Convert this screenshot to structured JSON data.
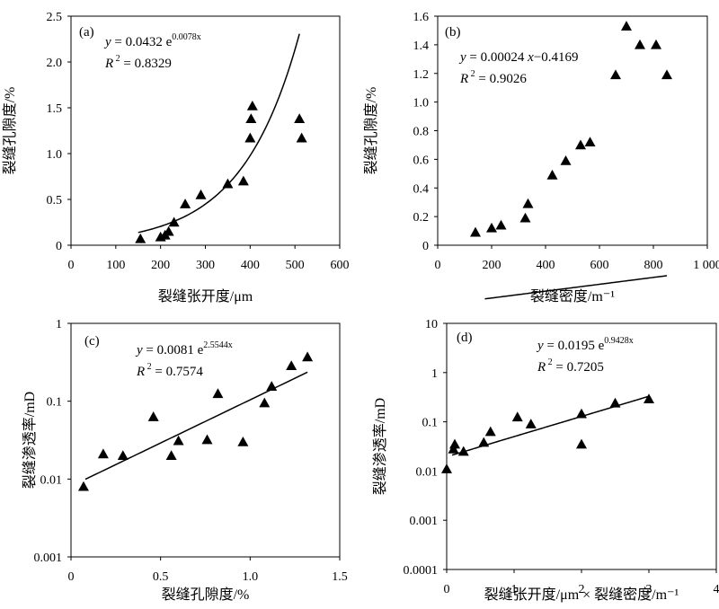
{
  "chart_data": [
    {
      "id": "a",
      "type": "scatter",
      "panel_label": "(a)",
      "xlabel": "裂缝张开度/μm",
      "ylabel": "裂缝孔隙度/%",
      "xlim": [
        0,
        600
      ],
      "ylim": [
        0,
        2.5
      ],
      "x_ticks": [
        "0",
        "100",
        "200",
        "300",
        "400",
        "500",
        "600"
      ],
      "y_ticks": [
        "0",
        "0.5",
        "1.0",
        "1.5",
        "2.0",
        "2.5"
      ],
      "y_scale": "linear",
      "points": [
        {
          "x": 155,
          "y": 0.07
        },
        {
          "x": 200,
          "y": 0.09
        },
        {
          "x": 210,
          "y": 0.11
        },
        {
          "x": 218,
          "y": 0.15
        },
        {
          "x": 230,
          "y": 0.25
        },
        {
          "x": 255,
          "y": 0.45
        },
        {
          "x": 290,
          "y": 0.55
        },
        {
          "x": 350,
          "y": 0.67
        },
        {
          "x": 385,
          "y": 0.7
        },
        {
          "x": 400,
          "y": 1.17
        },
        {
          "x": 402,
          "y": 1.38
        },
        {
          "x": 405,
          "y": 1.52
        },
        {
          "x": 510,
          "y": 1.38
        },
        {
          "x": 515,
          "y": 1.17
        }
      ],
      "fit": {
        "kind": "exp",
        "a": 0.0432,
        "b": 0.0078,
        "x_range": [
          150,
          510
        ]
      },
      "equation": {
        "y": "y",
        "eq": " = 0.0432 e",
        "exp": "0.0078x",
        "r2_R": "R",
        "r2_sup": "2",
        "r2_val": " = 0.8329"
      }
    },
    {
      "id": "b",
      "type": "scatter",
      "panel_label": "(b)",
      "xlabel": "裂缝密度/m⁻¹",
      "ylabel": "裂缝孔隙度/%",
      "xlim": [
        0,
        1000
      ],
      "ylim": [
        0,
        1.6
      ],
      "x_ticks": [
        "0",
        "200",
        "400",
        "600",
        "800",
        "1 000"
      ],
      "y_ticks": [
        "0",
        "0.2",
        "0.4",
        "0.6",
        "0.8",
        "1.0",
        "1.2",
        "1.4",
        "1.6"
      ],
      "y_scale": "linear",
      "points": [
        {
          "x": 140,
          "y": 0.09
        },
        {
          "x": 200,
          "y": 0.12
        },
        {
          "x": 235,
          "y": 0.14
        },
        {
          "x": 325,
          "y": 0.19
        },
        {
          "x": 335,
          "y": 0.29
        },
        {
          "x": 425,
          "y": 0.49
        },
        {
          "x": 475,
          "y": 0.59
        },
        {
          "x": 530,
          "y": 0.7
        },
        {
          "x": 565,
          "y": 0.72
        },
        {
          "x": 660,
          "y": 1.19
        },
        {
          "x": 700,
          "y": 1.53
        },
        {
          "x": 750,
          "y": 1.4
        },
        {
          "x": 810,
          "y": 1.4
        },
        {
          "x": 850,
          "y": 1.19
        }
      ],
      "fit": {
        "kind": "linear",
        "a": 0.00024,
        "b": -0.4169,
        "x_range": [
          175,
          850
        ]
      },
      "equation": {
        "y": "y",
        "eq": " = 0.00024 ",
        "x": "x",
        "eq2": "−0.4169",
        "r2_R": "R",
        "r2_sup": "2",
        "r2_val": " = 0.9026"
      }
    },
    {
      "id": "c",
      "type": "scatter",
      "panel_label": "(c)",
      "xlabel": "裂缝孔隙度/%",
      "ylabel": "裂缝渗透率/mD",
      "xlim": [
        0,
        1.5
      ],
      "ylim": [
        0.001,
        1
      ],
      "x_ticks": [
        "0",
        "0.5",
        "1.0",
        "1.5"
      ],
      "y_ticks": [
        "0.001",
        "0.01",
        "0.1",
        "1"
      ],
      "y_scale": "log",
      "points": [
        {
          "x": 0.07,
          "y": 0.008
        },
        {
          "x": 0.18,
          "y": 0.021
        },
        {
          "x": 0.29,
          "y": 0.02
        },
        {
          "x": 0.46,
          "y": 0.063
        },
        {
          "x": 0.56,
          "y": 0.02
        },
        {
          "x": 0.6,
          "y": 0.031
        },
        {
          "x": 0.76,
          "y": 0.032
        },
        {
          "x": 0.82,
          "y": 0.125
        },
        {
          "x": 0.96,
          "y": 0.03
        },
        {
          "x": 1.08,
          "y": 0.095
        },
        {
          "x": 1.12,
          "y": 0.155
        },
        {
          "x": 1.23,
          "y": 0.285
        },
        {
          "x": 1.32,
          "y": 0.37
        }
      ],
      "fit": {
        "kind": "exp",
        "a": 0.0081,
        "b": 2.5544,
        "x_range": [
          0.08,
          1.32
        ]
      },
      "equation": {
        "y": "y",
        "eq": " = 0.0081 e",
        "exp": "2.5544x",
        "r2_R": "R",
        "r2_sup": "2",
        "r2_val": " = 0.7574"
      }
    },
    {
      "id": "d",
      "type": "scatter",
      "panel_label": "(d)",
      "xlabel": "裂缝张开度/μm × 裂缝密度/m⁻¹",
      "ylabel": "裂缝渗透率/mD",
      "xlim": [
        0,
        4
      ],
      "ylim": [
        0.0001,
        10
      ],
      "x_ticks": [
        "0",
        "1",
        "2",
        "3",
        "4"
      ],
      "y_ticks": [
        "0.0001",
        "0.001",
        "0.01",
        "0.1",
        "1",
        "10"
      ],
      "y_scale": "log",
      "points": [
        {
          "x": 0.0,
          "y": 0.011
        },
        {
          "x": 0.1,
          "y": 0.028
        },
        {
          "x": 0.12,
          "y": 0.035
        },
        {
          "x": 0.25,
          "y": 0.025
        },
        {
          "x": 0.55,
          "y": 0.038
        },
        {
          "x": 0.65,
          "y": 0.063
        },
        {
          "x": 1.05,
          "y": 0.125
        },
        {
          "x": 1.25,
          "y": 0.09
        },
        {
          "x": 2.0,
          "y": 0.145
        },
        {
          "x": 2.0,
          "y": 0.035
        },
        {
          "x": 2.5,
          "y": 0.24
        },
        {
          "x": 3.0,
          "y": 0.29
        }
      ],
      "fit": {
        "kind": "exp",
        "a": 0.0195,
        "b": 0.9428,
        "x_range": [
          0.08,
          3.0
        ]
      },
      "equation": {
        "y": "y",
        "eq": " = 0.0195 e",
        "exp": "0.9428x",
        "r2_R": "R",
        "r2_sup": "2",
        "r2_val": " = 0.7205"
      }
    }
  ]
}
